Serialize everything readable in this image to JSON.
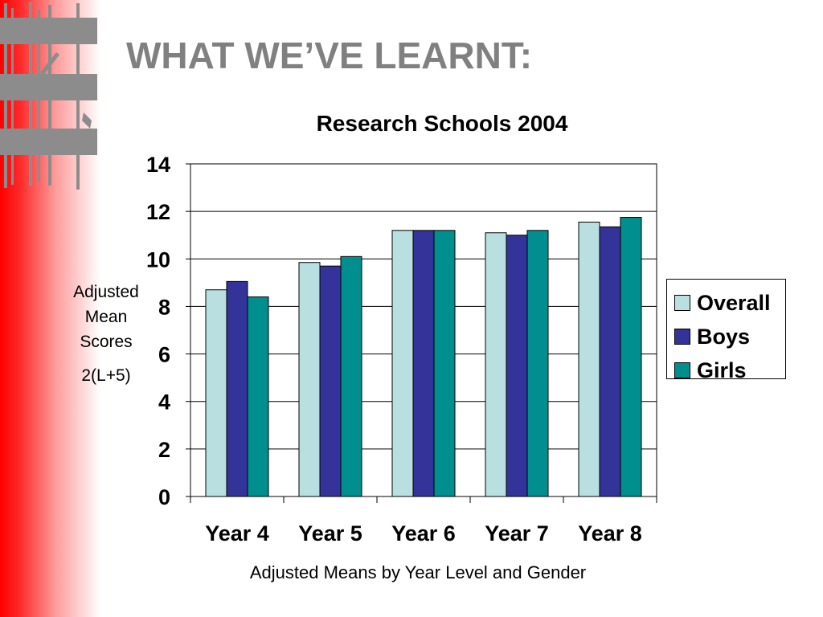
{
  "slide": {
    "title": "WHAT WE’VE LEARNT:"
  },
  "chart_data": {
    "type": "bar",
    "title": "Research Schools 2004",
    "ylabel_lines": [
      "Adjusted",
      "Mean",
      "Scores"
    ],
    "ylabel_sub": "2(L+5)",
    "caption": "Adjusted Means by Year Level and Gender",
    "categories": [
      "Year 4",
      "Year 5",
      "Year 6",
      "Year 7",
      "Year 8"
    ],
    "series": [
      {
        "name": "Overall",
        "color": "#b9dfe0",
        "values": [
          8.7,
          9.85,
          11.2,
          11.1,
          11.55
        ]
      },
      {
        "name": "Boys",
        "color": "#333399",
        "values": [
          9.05,
          9.7,
          11.2,
          11.0,
          11.35
        ]
      },
      {
        "name": "Girls",
        "color": "#008e8e",
        "values": [
          8.4,
          10.1,
          11.2,
          11.2,
          11.75
        ]
      }
    ],
    "ylim": [
      0,
      14
    ],
    "yticks": [
      0,
      2,
      4,
      6,
      8,
      10,
      12,
      14
    ],
    "grid": true,
    "legend_position": "right"
  }
}
